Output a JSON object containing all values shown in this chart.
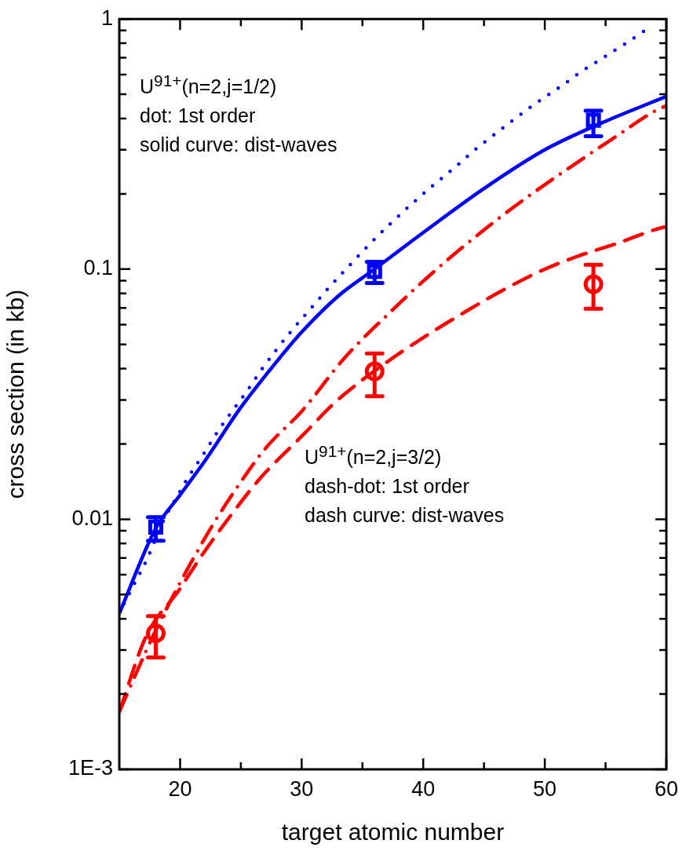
{
  "chart_data": {
    "type": "line",
    "xlabel": "target atomic number",
    "ylabel": "cross section (in kb)",
    "xlim": [
      15,
      60
    ],
    "ylim": [
      0.001,
      1
    ],
    "log": "y",
    "grid": false,
    "legend": false,
    "xticks": [
      {
        "value": 25,
        "label": null
      },
      20,
      30,
      {
        "value": 35,
        "label": null
      },
      40,
      {
        "value": 45,
        "label": null
      },
      50,
      {
        "value": 55,
        "label": null
      },
      60
    ],
    "yticks": [
      {
        "value": 0.001,
        "label": "1E-3"
      },
      {
        "value": 0.002,
        "label": null
      },
      {
        "value": 0.003,
        "label": null
      },
      {
        "value": 0.004,
        "label": null
      },
      {
        "value": 0.005,
        "label": null
      },
      {
        "value": 0.006,
        "label": null
      },
      {
        "value": 0.007,
        "label": null
      },
      {
        "value": 0.008,
        "label": null
      },
      {
        "value": 0.009,
        "label": null
      },
      0.01,
      {
        "value": 0.02,
        "label": null
      },
      {
        "value": 0.03,
        "label": null
      },
      {
        "value": 0.04,
        "label": null
      },
      {
        "value": 0.05,
        "label": null
      },
      {
        "value": 0.06,
        "label": null
      },
      {
        "value": 0.07,
        "label": null
      },
      {
        "value": 0.08,
        "label": null
      },
      {
        "value": 0.09,
        "label": null
      },
      0.1,
      {
        "value": 0.2,
        "label": null
      },
      {
        "value": 0.3,
        "label": null
      },
      {
        "value": 0.4,
        "label": null
      },
      {
        "value": 0.5,
        "label": null
      },
      {
        "value": 0.6,
        "label": null
      },
      {
        "value": 0.7,
        "label": null
      },
      {
        "value": 0.8,
        "label": null
      },
      {
        "value": 0.9,
        "label": null
      },
      1
    ],
    "annotations": [
      "U$^{91+}$(n=2,j=1/2)\ndot: 1st order\nsolid curve: dist-waves",
      "U$^{91+}$(n=2,j=3/2)\ndash-dot: 1st order\ndash curve: dist-waves"
    ],
    "series": [
      {
        "color": "#0000ff",
        "line_style": "dotted",
        "marker": "none",
        "x": [
          15.4,
          16.3,
          17.2,
          18.7,
          19.7,
          20.7,
          21.8,
          22.9,
          24.1,
          25.4,
          26.6,
          27.9,
          29.3,
          30.8,
          32.3,
          33.9,
          35.6,
          37.3,
          39.1,
          40.8,
          42.6,
          44.3,
          46.0,
          47.8,
          49.5,
          51.3,
          53.0,
          54.8,
          56.5,
          58.2
        ],
        "values": [
          0.0046,
          0.0056,
          0.0068,
          0.01,
          0.0122,
          0.0148,
          0.0178,
          0.0217,
          0.0263,
          0.032,
          0.039,
          0.0475,
          0.0577,
          0.07,
          0.085,
          0.103,
          0.126,
          0.152,
          0.183,
          0.216,
          0.255,
          0.301,
          0.35,
          0.408,
          0.469,
          0.537,
          0.616,
          0.7,
          0.79,
          0.897
        ]
      },
      {
        "color": "#0000ff",
        "line_style": "solid",
        "marker": "none",
        "x": [
          15,
          18,
          20,
          22,
          25,
          28,
          30,
          33,
          36,
          40,
          45,
          50,
          55,
          60
        ],
        "values": [
          0.0042,
          0.0092,
          0.0125,
          0.017,
          0.028,
          0.043,
          0.056,
          0.078,
          0.1,
          0.14,
          0.21,
          0.3,
          0.39,
          0.49
        ]
      },
      {
        "color": "#ff0000",
        "line_style": "dashdot",
        "marker": "none",
        "x": [
          15,
          18,
          22.1,
          24.5,
          27.1,
          30,
          33.5,
          37.1,
          40.7,
          44.4,
          48.1,
          51.8,
          55.5,
          59.1,
          60
        ],
        "values": [
          0.0017,
          0.0036,
          0.0085,
          0.013,
          0.0194,
          0.027,
          0.044,
          0.066,
          0.096,
          0.136,
          0.187,
          0.25,
          0.33,
          0.43,
          0.45
        ]
      },
      {
        "color": "#ff0000",
        "line_style": "dashed",
        "marker": "none",
        "x": [
          15,
          17.2,
          19.9,
          21.9,
          24.2,
          26.6,
          30.1,
          32.9,
          37.1,
          40.2,
          43.5,
          46.6,
          49.7,
          52.8,
          55.9,
          59.1,
          60
        ],
        "values": [
          0.0017,
          0.0034,
          0.0052,
          0.0073,
          0.0104,
          0.0146,
          0.0217,
          0.0298,
          0.0428,
          0.054,
          0.0677,
          0.0826,
          0.0985,
          0.113,
          0.1265,
          0.144,
          0.148
        ]
      },
      {
        "type": "scatter",
        "color": "#0000ff",
        "marker": "square",
        "x": [
          18,
          36,
          54
        ],
        "values": [
          0.0093,
          0.098,
          0.394
        ],
        "errors": [
          [
            0.0082,
            0.0102
          ],
          [
            0.088,
            0.107
          ],
          [
            0.34,
            0.43
          ]
        ]
      },
      {
        "type": "scatter",
        "color": "#ff0000",
        "marker": "circle",
        "x": [
          18,
          36,
          54
        ],
        "values": [
          0.0035,
          0.039,
          0.087
        ],
        "errors": [
          [
            0.0028,
            0.0041
          ],
          [
            0.031,
            0.046
          ],
          [
            0.0695,
            0.104
          ]
        ]
      }
    ]
  }
}
